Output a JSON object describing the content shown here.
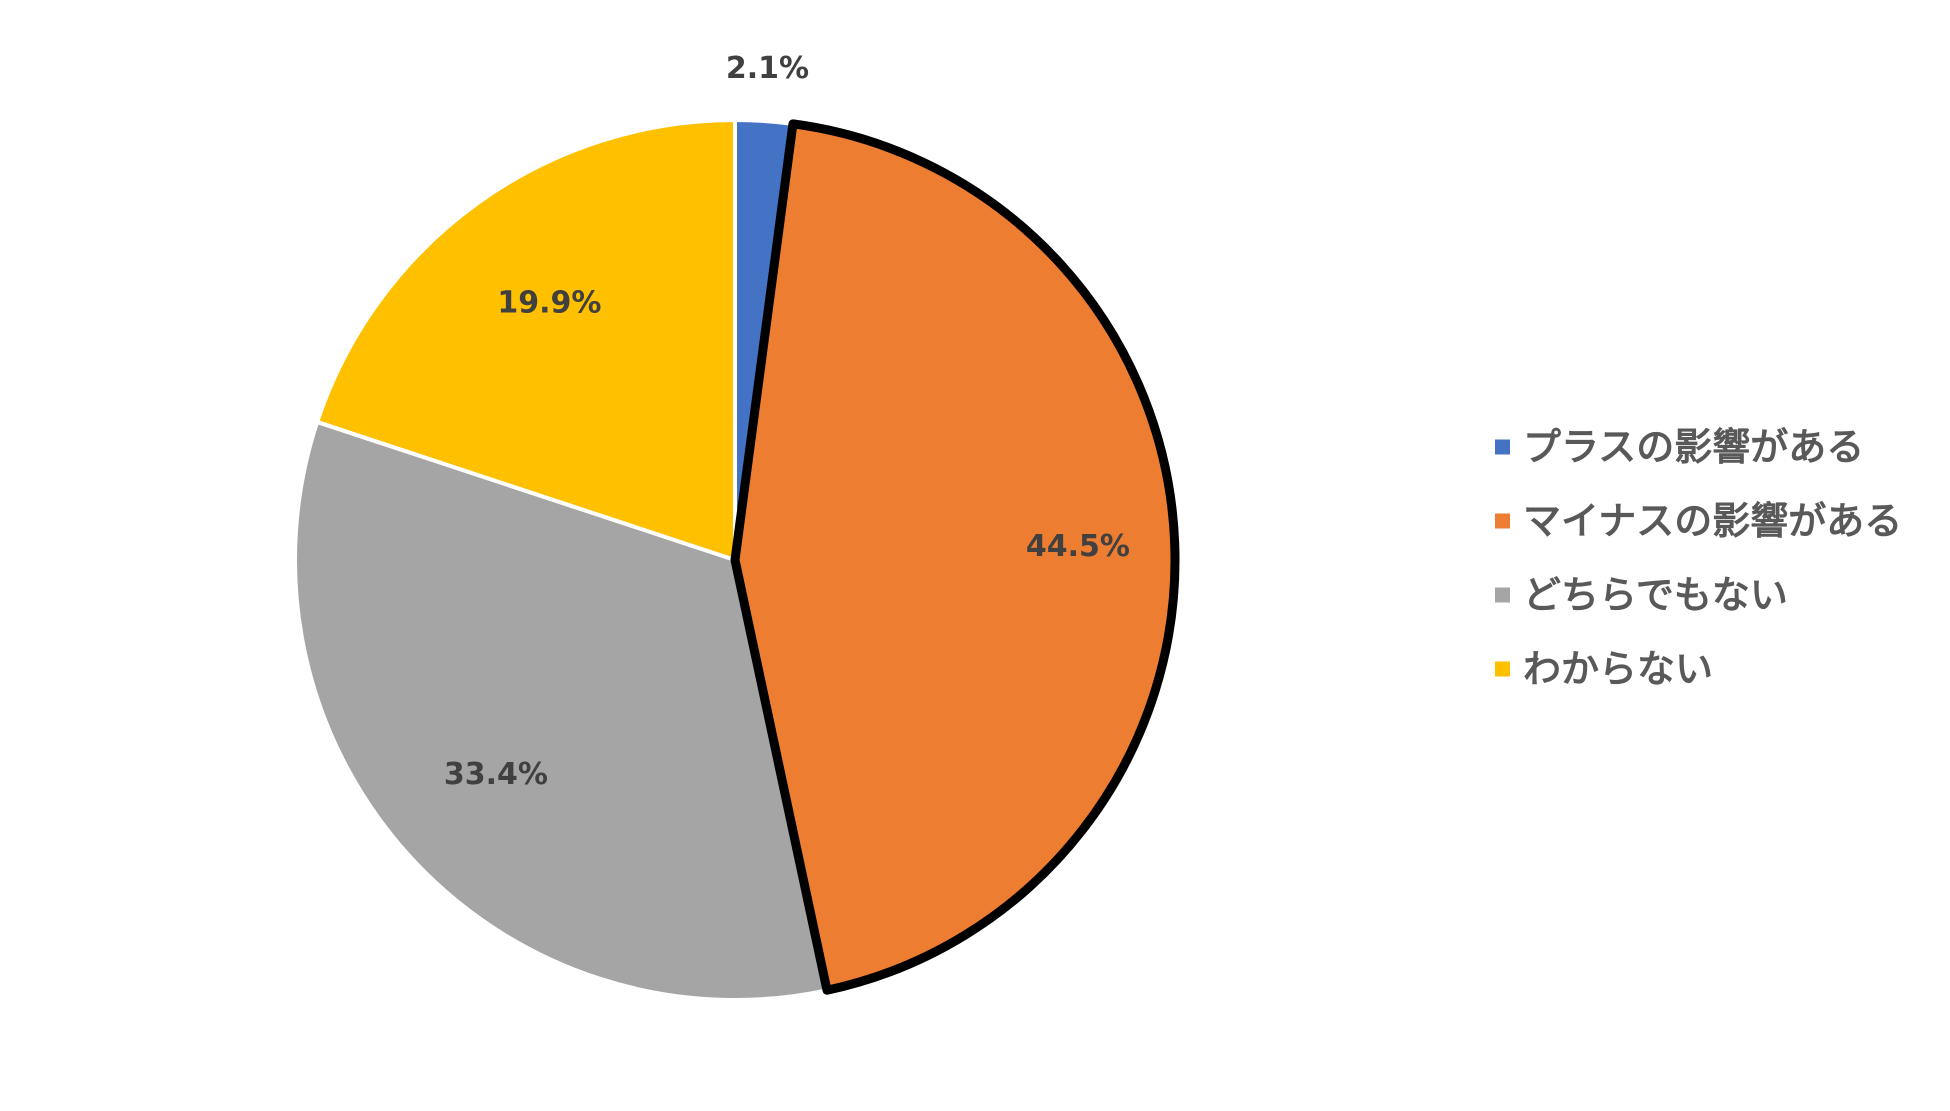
{
  "chart_data": {
    "type": "pie",
    "categories": [
      "プラスの影響がある",
      "マイナスの影響がある",
      "どちらでもない",
      "わからない"
    ],
    "values": [
      2.1,
      44.5,
      33.4,
      19.9
    ],
    "data_labels": [
      "2.1%",
      "44.5%",
      "33.4%",
      "19.9%"
    ],
    "colors": [
      "#4472C4",
      "#ED7D31",
      "#A5A5A5",
      "#FFC000"
    ],
    "highlighted_index": 1,
    "highlight_stroke": "#000000",
    "slice_separator_color": "#ffffff",
    "start_angle_deg": 0,
    "direction": "clockwise",
    "legend_position": "right"
  }
}
